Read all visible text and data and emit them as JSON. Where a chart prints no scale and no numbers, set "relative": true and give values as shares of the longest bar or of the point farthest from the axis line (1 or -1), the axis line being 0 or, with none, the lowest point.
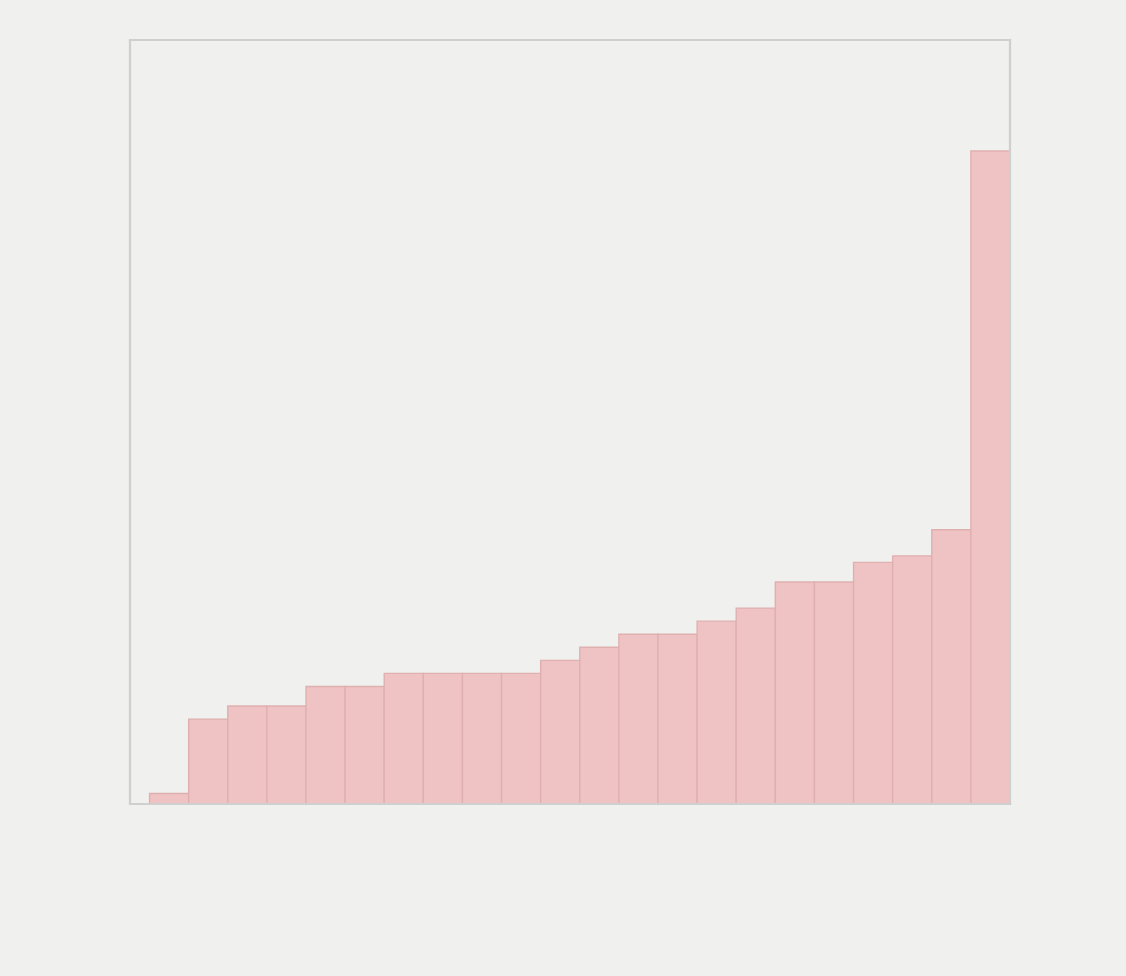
{
  "chart_data": {
    "type": "bar",
    "relative": true,
    "color": "#efc3c3",
    "categories": [
      null,
      null,
      null,
      null,
      null,
      null,
      null,
      null,
      null,
      null,
      null,
      null,
      null,
      null,
      null,
      null,
      null,
      null,
      null,
      null,
      null,
      null
    ],
    "values": [
      0.016,
      0.13,
      0.15,
      0.15,
      0.18,
      0.18,
      0.2,
      0.2,
      0.2,
      0.2,
      0.22,
      0.24,
      0.26,
      0.26,
      0.28,
      0.3,
      0.34,
      0.34,
      0.37,
      0.38,
      0.42,
      1.0
    ],
    "grid": false,
    "legend": false
  }
}
